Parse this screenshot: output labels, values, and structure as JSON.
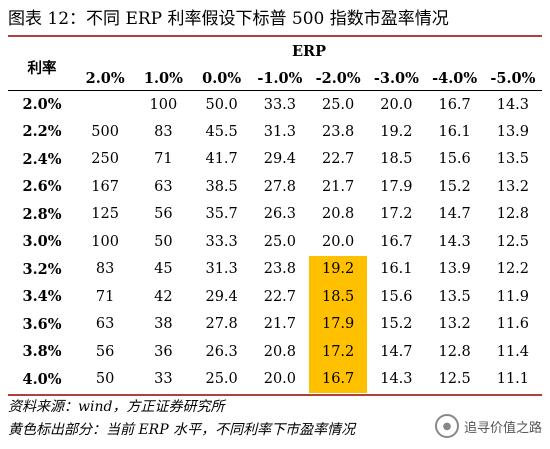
{
  "title": "图表 12：不同 ERP 利率假设下标普 500 指数市盈率情况",
  "table": {
    "row_header": "利率",
    "group_header": "ERP",
    "columns": [
      "2.0%",
      "1.0%",
      "0.0%",
      "-1.0%",
      "-2.0%",
      "-3.0%",
      "-4.0%",
      "-5.0%"
    ],
    "rows": [
      {
        "rate": "2.0%",
        "cells": [
          "",
          "100",
          "50.0",
          "33.3",
          "25.0",
          "20.0",
          "16.7",
          "14.3"
        ]
      },
      {
        "rate": "2.2%",
        "cells": [
          "500",
          "83",
          "45.5",
          "31.3",
          "23.8",
          "19.2",
          "16.1",
          "13.9"
        ]
      },
      {
        "rate": "2.4%",
        "cells": [
          "250",
          "71",
          "41.7",
          "29.4",
          "22.7",
          "18.5",
          "15.6",
          "13.5"
        ]
      },
      {
        "rate": "2.6%",
        "cells": [
          "167",
          "63",
          "38.5",
          "27.8",
          "21.7",
          "17.9",
          "15.2",
          "13.2"
        ]
      },
      {
        "rate": "2.8%",
        "cells": [
          "125",
          "56",
          "35.7",
          "26.3",
          "20.8",
          "17.2",
          "14.7",
          "12.8"
        ]
      },
      {
        "rate": "3.0%",
        "cells": [
          "100",
          "50",
          "33.3",
          "25.0",
          "20.0",
          "16.7",
          "14.3",
          "12.5"
        ]
      },
      {
        "rate": "3.2%",
        "cells": [
          "83",
          "45",
          "31.3",
          "23.8",
          "19.2",
          "16.1",
          "13.9",
          "12.2"
        ]
      },
      {
        "rate": "3.4%",
        "cells": [
          "71",
          "42",
          "29.4",
          "22.7",
          "18.5",
          "15.6",
          "13.5",
          "11.9"
        ]
      },
      {
        "rate": "3.6%",
        "cells": [
          "63",
          "38",
          "27.8",
          "21.7",
          "17.9",
          "15.2",
          "13.2",
          "11.6"
        ]
      },
      {
        "rate": "3.8%",
        "cells": [
          "56",
          "36",
          "26.3",
          "20.8",
          "17.2",
          "14.7",
          "12.8",
          "11.4"
        ]
      },
      {
        "rate": "4.0%",
        "cells": [
          "50",
          "33",
          "25.0",
          "20.0",
          "16.7",
          "14.3",
          "12.5",
          "11.1"
        ]
      }
    ],
    "highlight": {
      "column_index": 4,
      "rows": [
        "3.2%",
        "3.4%",
        "3.6%",
        "3.8%",
        "4.0%"
      ],
      "color": "#ffc000"
    }
  },
  "footer": {
    "source": "资料来源：wind，方正证券研究所",
    "note": "黄色标出部分：当前 ERP 水平，不同利率下市盈率情况"
  },
  "watermark": {
    "text": "追寻价值之路",
    "icon": "wechat-icon"
  },
  "colors": {
    "rule": "#b2403a",
    "highlight": "#ffc000"
  }
}
